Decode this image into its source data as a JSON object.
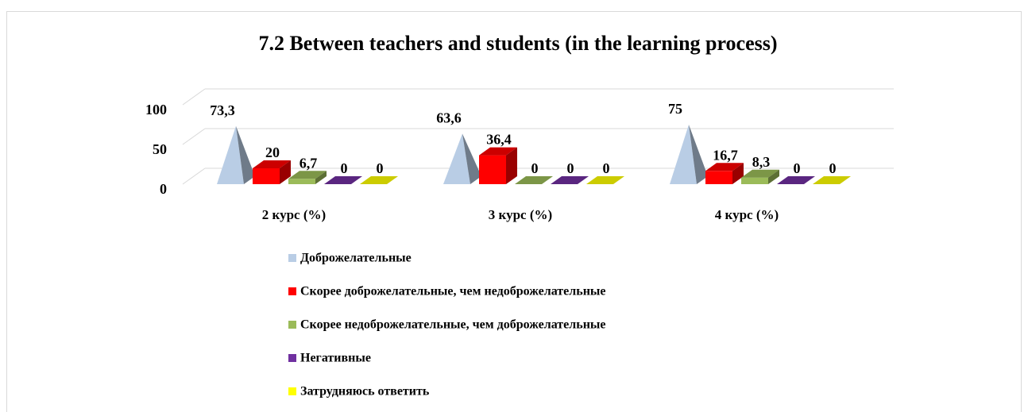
{
  "chart_data": {
    "type": "bar3d",
    "title": "7.2 Between teachers and students (in the learning process)",
    "categories": [
      "2 курс (%)",
      "3 курс (%)",
      "4 курс (%)"
    ],
    "series": [
      {
        "name": "Доброжелательные",
        "color": "#b9cde5",
        "values": [
          73.3,
          63.6,
          75
        ],
        "value_labels": [
          "73,3",
          "63,6",
          "75"
        ]
      },
      {
        "name": "Скорее доброжелательные, чем недоброжелательные",
        "color": "#ff0000",
        "values": [
          20,
          36.4,
          16.7
        ],
        "value_labels": [
          "20",
          "36,4",
          "16,7"
        ]
      },
      {
        "name": "Скорее недоброжелательные, чем доброжелательные",
        "color": "#9bbb59",
        "values": [
          6.7,
          0,
          8.3
        ],
        "value_labels": [
          "6,7",
          "0",
          "8,3"
        ]
      },
      {
        "name": "Негативные",
        "color": "#7030a0",
        "values": [
          0,
          0,
          0
        ],
        "value_labels": [
          "0",
          "0",
          "0"
        ]
      },
      {
        "name": "Затрудняюсь ответить",
        "color": "#ffff00",
        "values": [
          0,
          0,
          0
        ],
        "value_labels": [
          "0",
          "0",
          "0"
        ]
      }
    ],
    "ylim": [
      0,
      100
    ],
    "yticks": [
      0,
      50,
      100
    ],
    "grid": true
  }
}
